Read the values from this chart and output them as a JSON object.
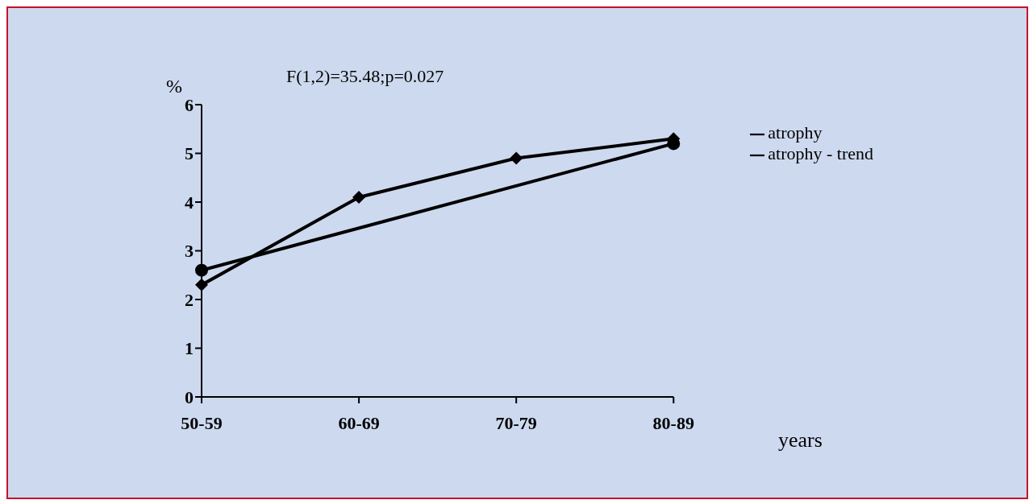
{
  "chart_data": {
    "type": "line",
    "categories": [
      "50-59",
      "60-69",
      "70-79",
      "80-89"
    ],
    "series": [
      {
        "name": "atrophy",
        "color": "#000000",
        "values": [
          2.3,
          4.1,
          4.9,
          5.3
        ],
        "marker": "diamond"
      },
      {
        "name": "atrophy - trend",
        "color": "#000000",
        "values": [
          2.6,
          null,
          null,
          5.2
        ],
        "marker": "circle"
      }
    ],
    "ylim": [
      0,
      6
    ],
    "yticks": [
      0,
      1,
      2,
      3,
      4,
      5,
      6
    ],
    "ylabel": "%",
    "xlabel": "years",
    "grid": false,
    "legend": "right",
    "annotations": [
      "F(1,2)=35.48;p=0.027"
    ]
  }
}
